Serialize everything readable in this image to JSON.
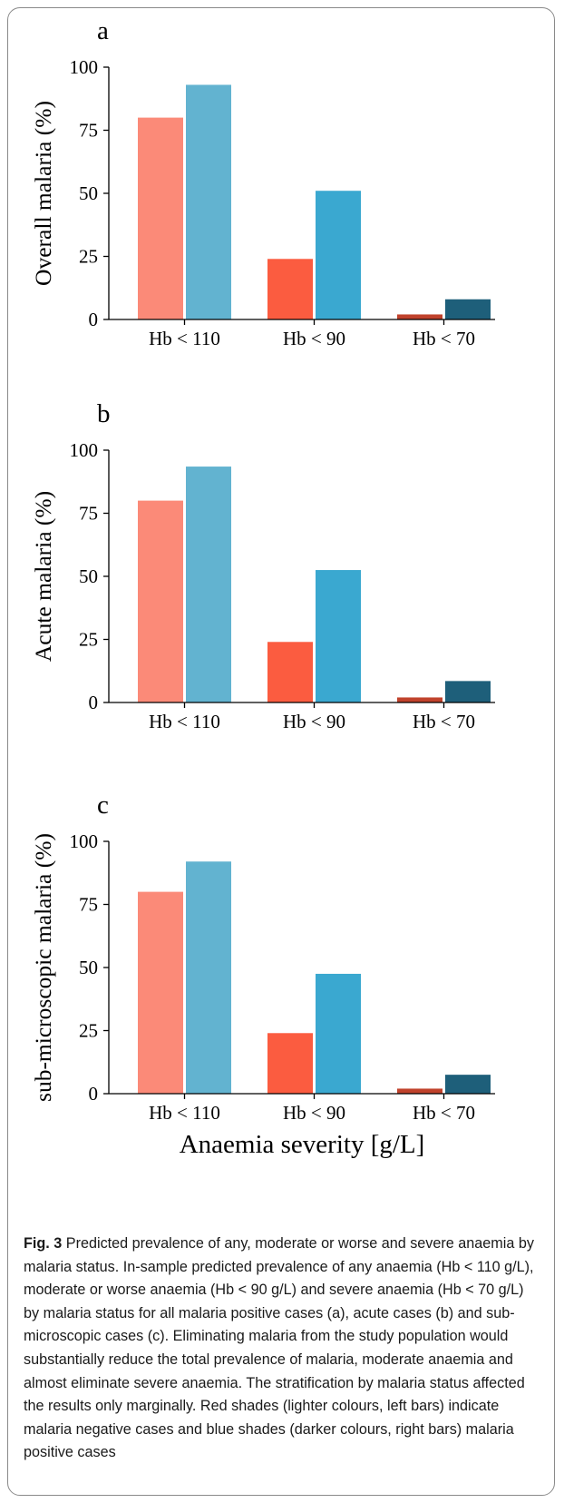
{
  "chart_data": [
    {
      "type": "bar",
      "panel_label": "a",
      "ylabel": "Overall malaria (%)",
      "ylim": [
        0,
        100
      ],
      "yticks": [
        "0",
        "25",
        "50",
        "75",
        "100"
      ],
      "categories": [
        "Hb < 110",
        "Hb < 90",
        "Hb < 70"
      ],
      "series": [
        {
          "values": [
            80,
            24,
            2
          ],
          "colors": [
            "#fb8a78",
            "#fb5c40",
            "#c0422c"
          ]
        },
        {
          "values": [
            93,
            51,
            8
          ],
          "colors": [
            "#62b3d0",
            "#3aa8d0",
            "#1e5f7a"
          ]
        }
      ]
    },
    {
      "type": "bar",
      "panel_label": "b",
      "ylabel": "Acute malaria (%)",
      "ylim": [
        0,
        100
      ],
      "yticks": [
        "0",
        "25",
        "50",
        "75",
        "100"
      ],
      "categories": [
        "Hb < 110",
        "Hb < 90",
        "Hb < 70"
      ],
      "series": [
        {
          "values": [
            80,
            24,
            2
          ],
          "colors": [
            "#fb8a78",
            "#fb5c40",
            "#c0422c"
          ]
        },
        {
          "values": [
            93.5,
            52.5,
            8.5
          ],
          "colors": [
            "#62b3d0",
            "#3aa8d0",
            "#1e5f7a"
          ]
        }
      ]
    },
    {
      "type": "bar",
      "panel_label": "c",
      "ylabel": "sub-microscopic malaria (%)",
      "xlabel": "Anaemia severity [g/L]",
      "ylim": [
        0,
        100
      ],
      "yticks": [
        "0",
        "25",
        "50",
        "75",
        "100"
      ],
      "categories": [
        "Hb < 110",
        "Hb < 90",
        "Hb < 70"
      ],
      "series": [
        {
          "values": [
            80,
            24,
            2
          ],
          "colors": [
            "#fb8a78",
            "#fb5c40",
            "#c0422c"
          ]
        },
        {
          "values": [
            92,
            47.5,
            7.5
          ],
          "colors": [
            "#62b3d0",
            "#3aa8d0",
            "#1e5f7a"
          ]
        }
      ]
    }
  ],
  "caption": {
    "label": "Fig. 3",
    "text": "Predicted prevalence of any, moderate or worse and severe anaemia by malaria status. In-sample predicted prevalence of any anaemia (Hb < 110 g/L), moderate or worse anaemia (Hb < 90 g/L) and severe anaemia (Hb < 70 g/L) by malaria status for all malaria positive cases (a), acute cases (b) and sub-microscopic cases (c). Eliminating malaria from the study population would substantially reduce the total prevalence of malaria, moderate anaemia and almost eliminate severe anaemia. The stratification by malaria status affected the results only marginally. Red shades (lighter colours, left bars) indicate malaria negative cases and blue shades (darker colours, right bars) malaria positive cases"
  }
}
